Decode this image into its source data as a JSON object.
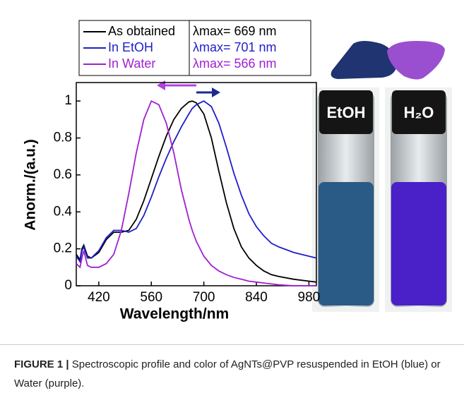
{
  "chart_data": {
    "type": "line",
    "xlabel": "Wavelength/nm",
    "ylabel": "Anorm./(a.u.)",
    "x": [
      360,
      370,
      375,
      380,
      390,
      400,
      420,
      440,
      460,
      480,
      500,
      520,
      540,
      560,
      580,
      600,
      620,
      640,
      660,
      669,
      680,
      700,
      720,
      740,
      760,
      780,
      800,
      820,
      840,
      860,
      880,
      900,
      940,
      980,
      1000
    ],
    "series": [
      {
        "name": "As obtained",
        "color": "#000000",
        "values": [
          0.17,
          0.14,
          0.2,
          0.22,
          0.16,
          0.15,
          0.18,
          0.25,
          0.29,
          0.29,
          0.3,
          0.36,
          0.46,
          0.58,
          0.7,
          0.81,
          0.9,
          0.96,
          0.995,
          1.0,
          0.99,
          0.93,
          0.8,
          0.62,
          0.45,
          0.31,
          0.21,
          0.15,
          0.11,
          0.08,
          0.06,
          0.05,
          0.035,
          0.025,
          0.02
        ]
      },
      {
        "name": "In EtOH",
        "color": "#1f1fc8",
        "values": [
          0.16,
          0.13,
          0.19,
          0.21,
          0.15,
          0.15,
          0.19,
          0.26,
          0.3,
          0.3,
          0.29,
          0.31,
          0.38,
          0.48,
          0.59,
          0.69,
          0.78,
          0.86,
          0.93,
          0.96,
          0.98,
          1.0,
          0.97,
          0.88,
          0.75,
          0.61,
          0.49,
          0.39,
          0.32,
          0.27,
          0.23,
          0.21,
          0.18,
          0.16,
          0.15
        ]
      },
      {
        "name": "In Water",
        "color": "#a020d0",
        "values": [
          0.12,
          0.1,
          0.15,
          0.19,
          0.11,
          0.1,
          0.1,
          0.12,
          0.17,
          0.3,
          0.5,
          0.72,
          0.9,
          1.0,
          0.98,
          0.88,
          0.72,
          0.52,
          0.36,
          0.3,
          0.24,
          0.16,
          0.11,
          0.08,
          0.06,
          0.045,
          0.035,
          0.025,
          0.02,
          0.015,
          0.01,
          0.005,
          0,
          0,
          0
        ]
      }
    ],
    "annotations": [
      "λmax= 669 nm",
      "λmax= 701 nm",
      "λmax= 566 nm"
    ],
    "xlim": [
      360,
      1000
    ],
    "xticks": [
      420,
      560,
      700,
      840,
      980
    ],
    "ylim": [
      0,
      1.1
    ],
    "yticks": [
      0,
      0.2,
      0.4,
      0.6,
      0.8,
      1
    ]
  },
  "photos": [
    "EtOH",
    "H₂O"
  ],
  "caption": {
    "label": "FIGURE 1 |",
    "text": "Spectroscopic profile and color of AgNTs@PVP resuspended in EtOH (blue) or Water (purple)."
  }
}
